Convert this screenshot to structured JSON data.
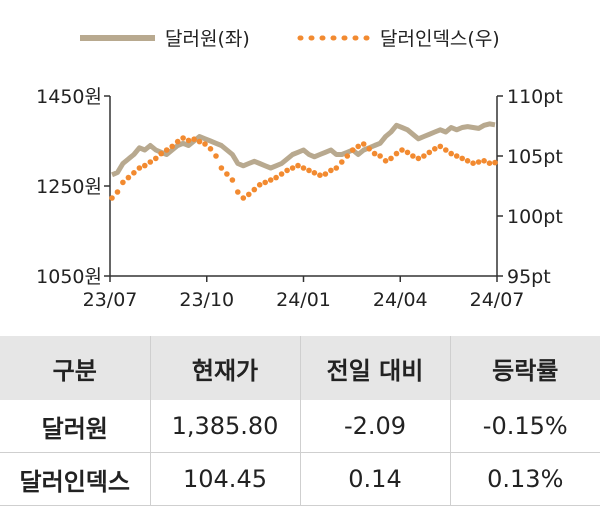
{
  "chart_data": {
    "type": "line",
    "legend": [
      {
        "name": "달러원(좌)",
        "color": "#b8a98f",
        "style": "solid"
      },
      {
        "name": "달러인덱스(우)",
        "color": "#f28a30",
        "style": "dotted"
      }
    ],
    "x_ticks": [
      "23/07",
      "23/10",
      "24/01",
      "24/04",
      "24/07"
    ],
    "y_left": {
      "ticks": [
        "1450원",
        "1250원",
        "1050원"
      ],
      "range": [
        1050,
        1450
      ]
    },
    "y_right": {
      "ticks": [
        "110pt",
        "105pt",
        "100pt",
        "95pt"
      ],
      "range": [
        95,
        110
      ]
    },
    "series": [
      {
        "name": "달러원(좌)",
        "axis": "left",
        "values": [
          1275,
          1280,
          1300,
          1310,
          1320,
          1335,
          1330,
          1340,
          1330,
          1325,
          1320,
          1330,
          1340,
          1345,
          1340,
          1350,
          1360,
          1355,
          1350,
          1345,
          1340,
          1330,
          1320,
          1300,
          1295,
          1300,
          1305,
          1300,
          1295,
          1290,
          1295,
          1300,
          1310,
          1320,
          1325,
          1330,
          1320,
          1315,
          1320,
          1325,
          1330,
          1320,
          1320,
          1325,
          1330,
          1320,
          1330,
          1335,
          1340,
          1345,
          1360,
          1370,
          1385,
          1380,
          1375,
          1365,
          1355,
          1360,
          1365,
          1370,
          1375,
          1370,
          1380,
          1375,
          1380,
          1382,
          1380,
          1378,
          1385,
          1388,
          1386
        ]
      },
      {
        "name": "달러인덱스(우)",
        "axis": "right",
        "values": [
          101.5,
          102.0,
          102.8,
          103.2,
          103.6,
          104.0,
          104.2,
          104.5,
          104.8,
          105.2,
          105.5,
          105.8,
          106.2,
          106.5,
          106.3,
          106.4,
          106.2,
          106.0,
          105.6,
          105.0,
          104.0,
          103.5,
          103.0,
          102.0,
          101.5,
          101.8,
          102.2,
          102.6,
          102.8,
          103.0,
          103.2,
          103.5,
          103.8,
          104.0,
          104.2,
          104.0,
          103.8,
          103.6,
          103.4,
          103.5,
          103.8,
          104.0,
          104.5,
          105.0,
          105.5,
          105.8,
          106.0,
          105.6,
          105.2,
          105.0,
          104.6,
          104.8,
          105.2,
          105.5,
          105.3,
          105.0,
          104.8,
          105.0,
          105.3,
          105.6,
          105.8,
          105.5,
          105.2,
          105.0,
          104.8,
          104.6,
          104.4,
          104.5,
          104.6,
          104.4,
          104.45
        ]
      }
    ]
  },
  "table": {
    "headers": [
      "구분",
      "현재가",
      "전일 대비",
      "등락률"
    ],
    "rows": [
      [
        "달러원",
        "1,385.80",
        "-2.09",
        "-0.15%"
      ],
      [
        "달러인덱스",
        "104.45",
        "0.14",
        "0.13%"
      ]
    ]
  }
}
